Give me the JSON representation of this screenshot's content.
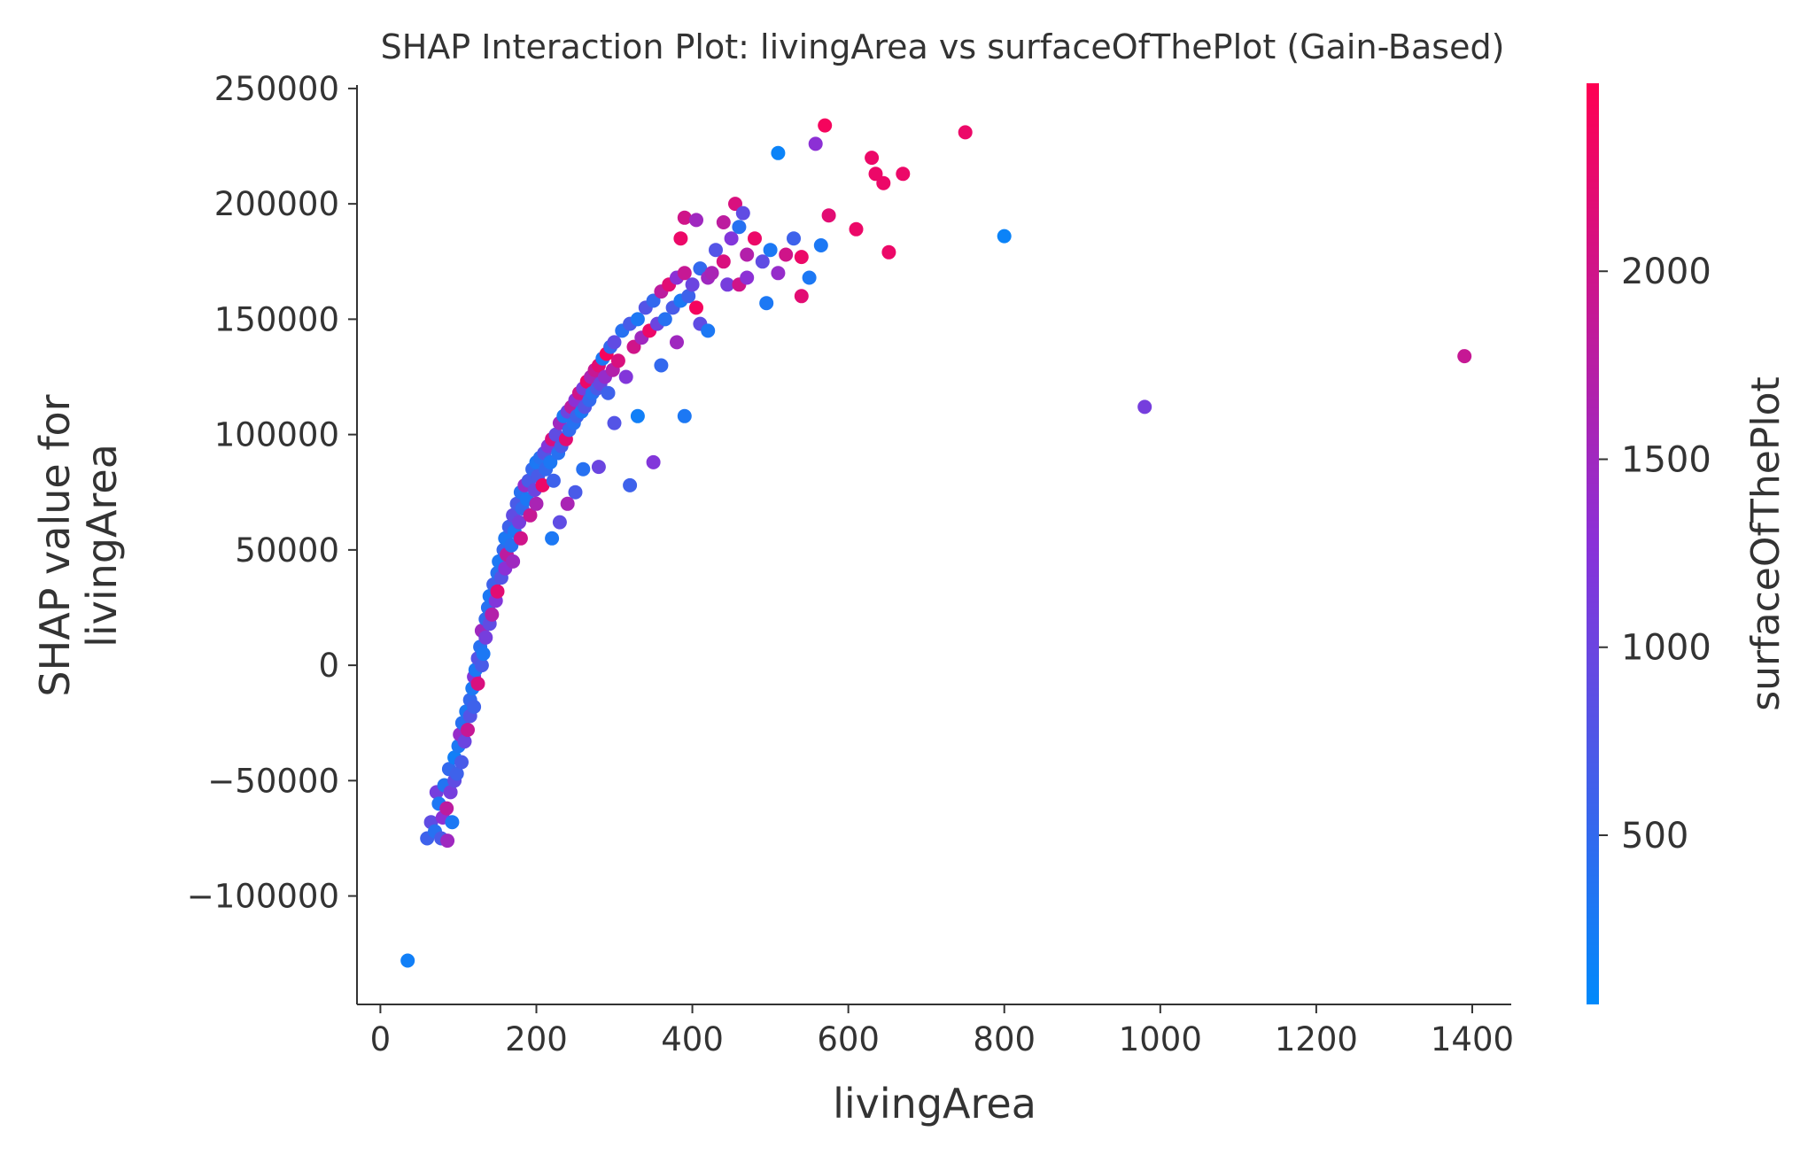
{
  "chart_data": {
    "type": "scatter",
    "title": "SHAP Interaction Plot: livingArea vs surfaceOfThePlot (Gain-Based)",
    "xlabel": "livingArea",
    "ylabel": "SHAP value for\nlivingArea",
    "xlim": [
      -30,
      1450
    ],
    "ylim": [
      -147000,
      251500
    ],
    "x_ticks": [
      0,
      200,
      400,
      600,
      800,
      1000,
      1200,
      1400
    ],
    "x_tick_labels": [
      "0",
      "200",
      "400",
      "600",
      "800",
      "1000",
      "1200",
      "1400"
    ],
    "y_ticks": [
      -100000,
      -50000,
      0,
      50000,
      100000,
      150000,
      200000,
      250000
    ],
    "y_tick_labels": [
      "−100000",
      "−50000",
      "0",
      "50000",
      "100000",
      "150000",
      "200000",
      "250000"
    ],
    "colorbar": {
      "label": "surfaceOfThePlot",
      "range": [
        50,
        2500
      ],
      "ticks": [
        500,
        1000,
        1500,
        2000
      ],
      "tick_labels": [
        "500",
        "1000",
        "1500",
        "2000"
      ],
      "color_low": "#008afb",
      "color_mid": "#8a31d8",
      "color_high": "#ff0052"
    },
    "grid": false,
    "series": [
      {
        "points": [
          [
            35,
            -128000,
            200
          ],
          [
            60,
            -75000,
            600
          ],
          [
            65,
            -68000,
            900
          ],
          [
            70,
            -72000,
            400
          ],
          [
            72,
            -55000,
            1100
          ],
          [
            75,
            -60000,
            300
          ],
          [
            78,
            -75000,
            700
          ],
          [
            80,
            -66000,
            1300
          ],
          [
            82,
            -52000,
            350
          ],
          [
            85,
            -62000,
            1800
          ],
          [
            86,
            -76000,
            1500
          ],
          [
            88,
            -45000,
            500
          ],
          [
            90,
            -55000,
            1100
          ],
          [
            92,
            -68000,
            300
          ],
          [
            95,
            -50000,
            900
          ],
          [
            95,
            -40000,
            200
          ],
          [
            98,
            -47000,
            600
          ],
          [
            100,
            -35000,
            300
          ],
          [
            102,
            -30000,
            1400
          ],
          [
            104,
            -42000,
            700
          ],
          [
            105,
            -25000,
            400
          ],
          [
            108,
            -33000,
            1000
          ],
          [
            110,
            -20000,
            300
          ],
          [
            112,
            -28000,
            1900
          ],
          [
            115,
            -15000,
            500
          ],
          [
            115,
            -22000,
            800
          ],
          [
            118,
            -10000,
            300
          ],
          [
            120,
            -5000,
            1200
          ],
          [
            120,
            -18000,
            600
          ],
          [
            122,
            -2000,
            300
          ],
          [
            125,
            3000,
            800
          ],
          [
            125,
            -8000,
            2100
          ],
          [
            128,
            8000,
            400
          ],
          [
            130,
            15000,
            1500
          ],
          [
            130,
            0,
            700
          ],
          [
            132,
            5000,
            300
          ],
          [
            135,
            12000,
            1100
          ],
          [
            135,
            20000,
            500
          ],
          [
            138,
            25000,
            400
          ],
          [
            140,
            18000,
            900
          ],
          [
            140,
            30000,
            300
          ],
          [
            143,
            22000,
            1700
          ],
          [
            145,
            35000,
            600
          ],
          [
            148,
            28000,
            1200
          ],
          [
            150,
            40000,
            400
          ],
          [
            150,
            32000,
            2200
          ],
          [
            152,
            45000,
            300
          ],
          [
            155,
            38000,
            800
          ],
          [
            158,
            50000,
            500
          ],
          [
            160,
            42000,
            1300
          ],
          [
            160,
            55000,
            300
          ],
          [
            162,
            48000,
            1800
          ],
          [
            165,
            60000,
            600
          ],
          [
            168,
            52000,
            400
          ],
          [
            170,
            65000,
            900
          ],
          [
            170,
            45000,
            1500
          ],
          [
            172,
            58000,
            300
          ],
          [
            175,
            70000,
            700
          ],
          [
            178,
            62000,
            1100
          ],
          [
            180,
            75000,
            400
          ],
          [
            180,
            55000,
            2000
          ],
          [
            182,
            68000,
            500
          ],
          [
            185,
            78000,
            1400
          ],
          [
            188,
            72000,
            300
          ],
          [
            190,
            80000,
            700
          ],
          [
            192,
            65000,
            1900
          ],
          [
            195,
            85000,
            500
          ],
          [
            198,
            76000,
            1000
          ],
          [
            200,
            88000,
            300
          ],
          [
            200,
            70000,
            1600
          ],
          [
            202,
            82000,
            700
          ],
          [
            205,
            90000,
            400
          ],
          [
            208,
            78000,
            2300
          ],
          [
            210,
            92000,
            800
          ],
          [
            212,
            85000,
            500
          ],
          [
            215,
            95000,
            1200
          ],
          [
            218,
            88000,
            300
          ],
          [
            220,
            98000,
            2100
          ],
          [
            222,
            80000,
            600
          ],
          [
            225,
            100000,
            900
          ],
          [
            228,
            92000,
            400
          ],
          [
            230,
            105000,
            1500
          ],
          [
            232,
            95000,
            700
          ],
          [
            235,
            108000,
            300
          ],
          [
            238,
            98000,
            2200
          ],
          [
            240,
            110000,
            1000
          ],
          [
            242,
            102000,
            500
          ],
          [
            245,
            112000,
            1800
          ],
          [
            248,
            105000,
            400
          ],
          [
            250,
            115000,
            1300
          ],
          [
            252,
            108000,
            600
          ],
          [
            255,
            118000,
            2000
          ],
          [
            258,
            110000,
            300
          ],
          [
            260,
            120000,
            1100
          ],
          [
            262,
            112000,
            800
          ],
          [
            265,
            123000,
            2300
          ],
          [
            268,
            115000,
            500
          ],
          [
            270,
            125000,
            1600
          ],
          [
            272,
            118000,
            400
          ],
          [
            275,
            128000,
            1900
          ],
          [
            278,
            120000,
            700
          ],
          [
            280,
            130000,
            2200
          ],
          [
            282,
            122000,
            1000
          ],
          [
            285,
            133000,
            300
          ],
          [
            288,
            125000,
            1400
          ],
          [
            290,
            135000,
            2400
          ],
          [
            292,
            118000,
            600
          ],
          [
            295,
            138000,
            500
          ],
          [
            298,
            128000,
            1700
          ],
          [
            300,
            140000,
            900
          ],
          [
            305,
            132000,
            2100
          ],
          [
            310,
            145000,
            400
          ],
          [
            315,
            125000,
            1200
          ],
          [
            320,
            148000,
            700
          ],
          [
            325,
            138000,
            2000
          ],
          [
            330,
            150000,
            300
          ],
          [
            335,
            142000,
            1500
          ],
          [
            340,
            155000,
            800
          ],
          [
            345,
            145000,
            2300
          ],
          [
            350,
            158000,
            500
          ],
          [
            355,
            148000,
            1000
          ],
          [
            360,
            162000,
            1800
          ],
          [
            365,
            150000,
            400
          ],
          [
            370,
            165000,
            2200
          ],
          [
            375,
            155000,
            700
          ],
          [
            380,
            168000,
            1300
          ],
          [
            385,
            158000,
            300
          ],
          [
            390,
            170000,
            1900
          ],
          [
            395,
            160000,
            600
          ],
          [
            400,
            165000,
            1000
          ],
          [
            405,
            155000,
            2400
          ],
          [
            410,
            172000,
            500
          ],
          [
            420,
            168000,
            1500
          ],
          [
            430,
            180000,
            800
          ],
          [
            440,
            175000,
            2100
          ],
          [
            450,
            185000,
            1200
          ],
          [
            460,
            190000,
            400
          ],
          [
            470,
            178000,
            1700
          ],
          [
            480,
            185000,
            2300
          ],
          [
            490,
            175000,
            900
          ],
          [
            500,
            180000,
            300
          ],
          [
            510,
            170000,
            1400
          ],
          [
            520,
            178000,
            2000
          ],
          [
            530,
            185000,
            600
          ],
          [
            540,
            160000,
            2200
          ],
          [
            550,
            168000,
            300
          ],
          [
            558,
            226000,
            1300
          ],
          [
            565,
            182000,
            300
          ],
          [
            570,
            234000,
            2400
          ],
          [
            575,
            195000,
            2200
          ],
          [
            510,
            222000,
            150
          ],
          [
            495,
            157000,
            300
          ],
          [
            540,
            177000,
            2300
          ],
          [
            610,
            189000,
            2300
          ],
          [
            630,
            220000,
            2300
          ],
          [
            635,
            213000,
            2300
          ],
          [
            645,
            209000,
            2300
          ],
          [
            652,
            179000,
            2300
          ],
          [
            670,
            213000,
            2300
          ],
          [
            750,
            231000,
            2300
          ],
          [
            800,
            186000,
            150
          ],
          [
            980,
            112000,
            1100
          ],
          [
            1390,
            134000,
            1900
          ],
          [
            280,
            86000,
            1000
          ],
          [
            300,
            105000,
            800
          ],
          [
            330,
            108000,
            200
          ],
          [
            350,
            88000,
            1200
          ],
          [
            320,
            78000,
            600
          ],
          [
            390,
            108000,
            300
          ],
          [
            360,
            130000,
            500
          ],
          [
            380,
            140000,
            1500
          ],
          [
            410,
            148000,
            900
          ],
          [
            420,
            145000,
            300
          ],
          [
            440,
            192000,
            1800
          ],
          [
            455,
            200000,
            2100
          ],
          [
            465,
            196000,
            900
          ],
          [
            390,
            194000,
            2000
          ],
          [
            385,
            185000,
            2300
          ],
          [
            405,
            193000,
            1500
          ],
          [
            425,
            170000,
            1600
          ],
          [
            445,
            165000,
            1100
          ],
          [
            460,
            165000,
            2000
          ],
          [
            470,
            168000,
            1300
          ],
          [
            250,
            75000,
            700
          ],
          [
            260,
            85000,
            400
          ],
          [
            240,
            70000,
            1600
          ],
          [
            230,
            62000,
            900
          ],
          [
            220,
            55000,
            300
          ]
        ]
      }
    ]
  }
}
